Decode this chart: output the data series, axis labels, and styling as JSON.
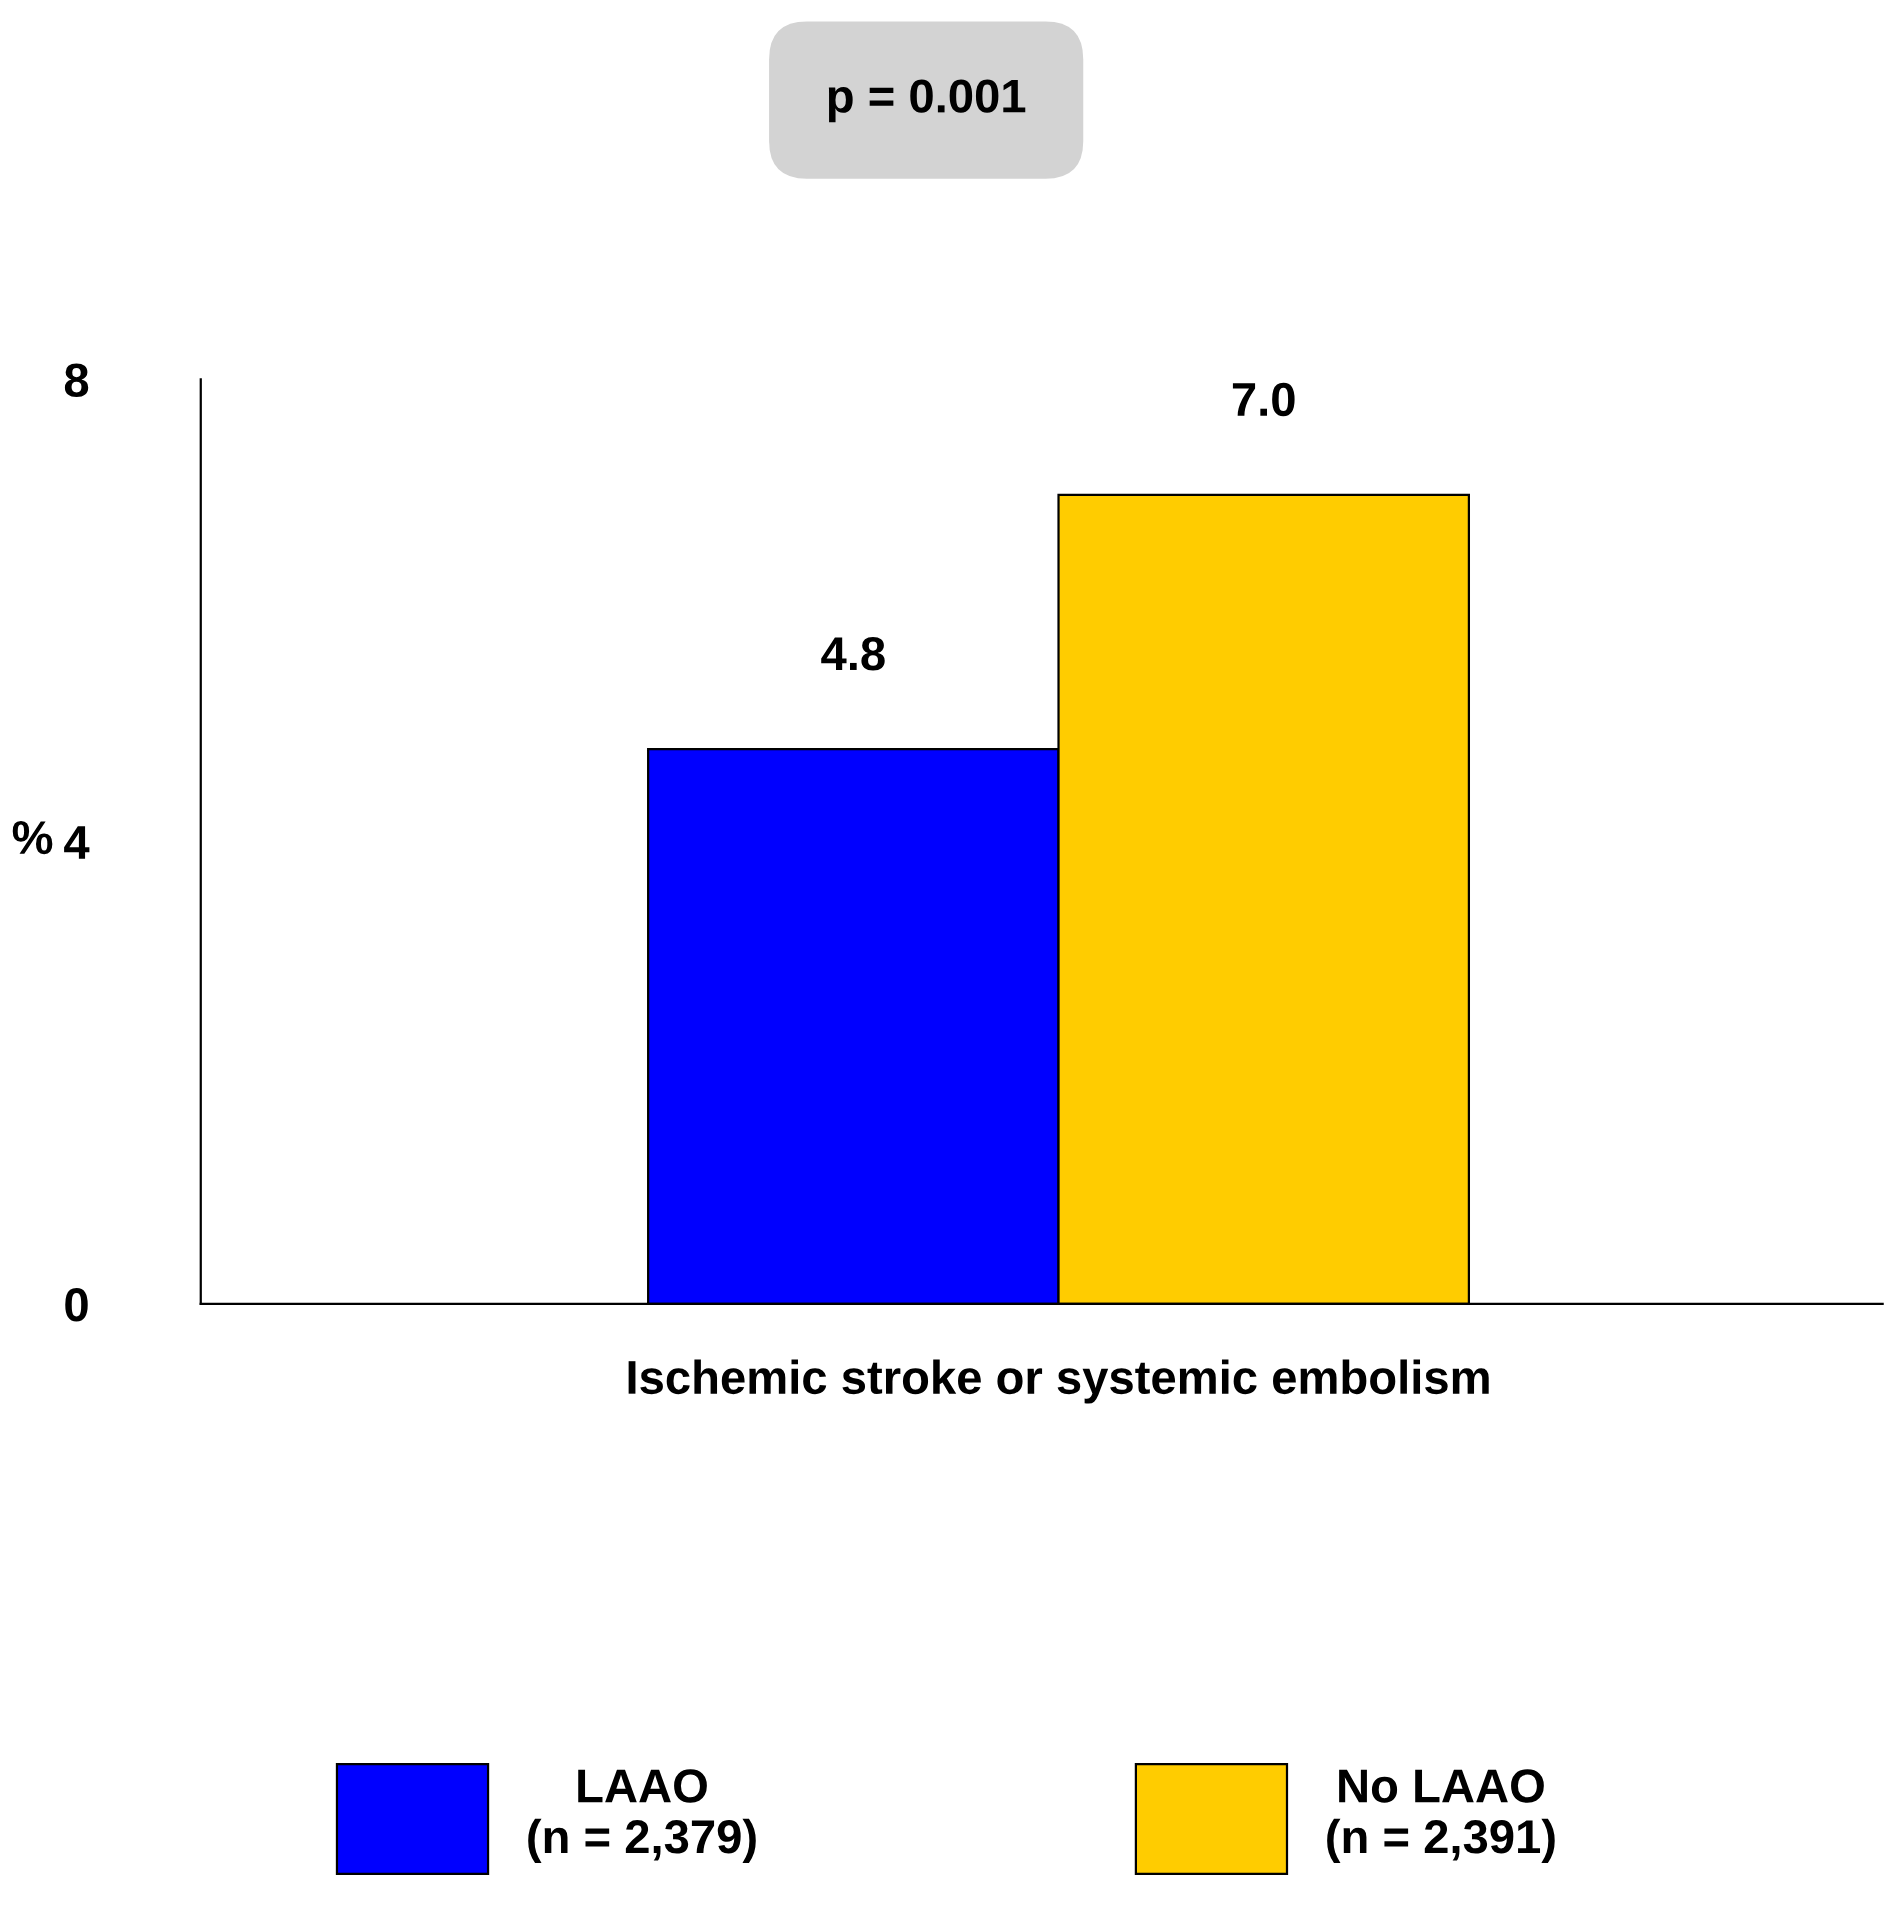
{
  "chart_data": {
    "type": "bar",
    "ylabel": "%",
    "categories": [
      "Ischemic stroke or systemic embolism"
    ],
    "series": [
      {
        "name": "LAAO\n(n = 2,379)",
        "color": "#0000ff",
        "values": [
          4.8
        ],
        "value_labels": [
          "4.8"
        ]
      },
      {
        "name": "No LAAO\n(n = 2,391)",
        "color": "#ffcc00",
        "values": [
          7.0
        ],
        "value_labels": [
          "7.0"
        ]
      }
    ],
    "ylim": [
      0,
      8
    ],
    "yticks": [
      0,
      4,
      8
    ],
    "grid": false,
    "legend": "bottom",
    "annotations": [
      "p = 0.001"
    ]
  }
}
